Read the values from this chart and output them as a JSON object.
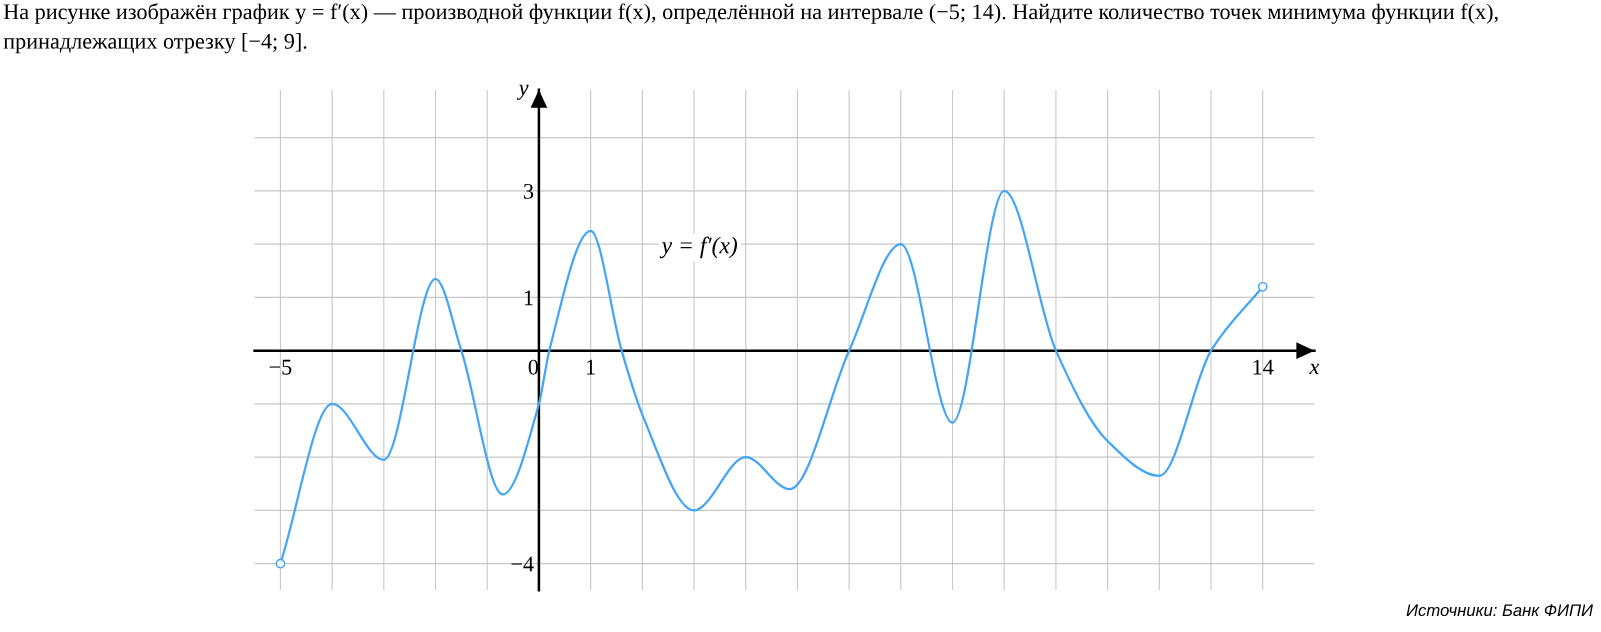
{
  "chart_data": {
    "type": "line",
    "title": "На рисунке изображён график y = f′(x) — производной функции f(x), определённой на интервале (−5; 14). Найдите количество точек минимума функции f(x), принадлежащих отрезку [−4; 9].",
    "xlabel": "x",
    "ylabel": "y",
    "series": [
      {
        "color": "#42a5f5",
        "x": [
          -5,
          -4,
          -3,
          -2,
          -1.5,
          -0.7,
          0,
          0.2,
          1,
          1.6,
          2,
          3,
          4,
          4.85,
          6,
          7,
          8,
          9,
          10,
          11,
          12,
          13,
          14
        ],
        "values": [
          -4,
          -1,
          -2.05,
          1.35,
          0,
          -2.7,
          -1,
          0,
          2.25,
          0,
          -1.2,
          -3,
          -2,
          -2.6,
          0,
          2,
          -1.35,
          3,
          0,
          -1.7,
          -2.35,
          0,
          1.2
        ]
      }
    ],
    "annotations": [
      "y = f′(x)",
      "Источники: Банк ФИПИ"
    ],
    "xlim": [
      -5.5,
      15
    ],
    "ylim": [
      -4.5,
      4.9
    ],
    "xticks": [
      {
        "value": -5,
        "label": "−5"
      },
      {
        "value": -4,
        "label": null
      },
      {
        "value": -3,
        "label": null
      },
      {
        "value": -2,
        "label": null
      },
      {
        "value": -1,
        "label": null
      },
      0,
      1,
      {
        "value": 2,
        "label": null
      },
      {
        "value": 3,
        "label": null
      },
      {
        "value": 4,
        "label": null
      },
      {
        "value": 5,
        "label": null
      },
      {
        "value": 6,
        "label": null
      },
      {
        "value": 7,
        "label": null
      },
      {
        "value": 8,
        "label": null
      },
      {
        "value": 9,
        "label": null
      },
      {
        "value": 10,
        "label": null
      },
      {
        "value": 11,
        "label": null
      },
      {
        "value": 12,
        "label": null
      },
      {
        "value": 13,
        "label": null
      },
      14
    ],
    "yticks": [
      {
        "value": -4,
        "label": "−4"
      },
      {
        "value": -3,
        "label": null
      },
      {
        "value": -2,
        "label": null
      },
      {
        "value": -1,
        "label": null
      },
      1,
      {
        "value": 2,
        "label": null
      },
      3,
      {
        "value": 4,
        "label": null
      }
    ],
    "grid": true
  }
}
